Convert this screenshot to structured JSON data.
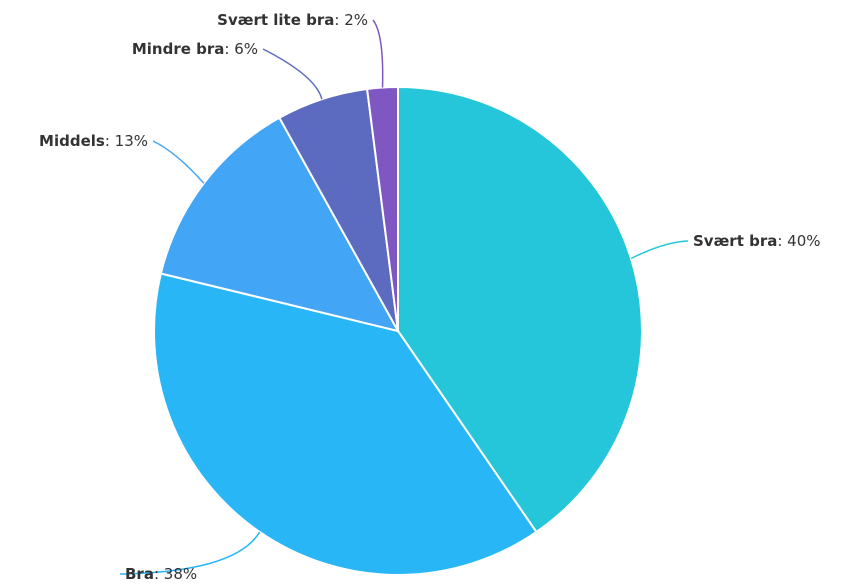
{
  "chart_data": {
    "type": "pie",
    "title": "",
    "slices": [
      {
        "label": "Svært bra",
        "value": 40,
        "value_text": "40%",
        "color": "#26C6DA"
      },
      {
        "label": "Bra",
        "value": 38,
        "value_text": "38%",
        "color": "#29B6F6"
      },
      {
        "label": "Middels",
        "value": 13,
        "value_text": "13%",
        "color": "#42A5F5"
      },
      {
        "label": "Mindre bra",
        "value": 6,
        "value_text": "6%",
        "color": "#5C6BC0"
      },
      {
        "label": "Svært lite bra",
        "value": 2,
        "value_text": "2%",
        "color": "#7E57C2"
      }
    ],
    "start_angle": "12 o'clock",
    "direction": "clockwise",
    "label_separator": ": "
  }
}
